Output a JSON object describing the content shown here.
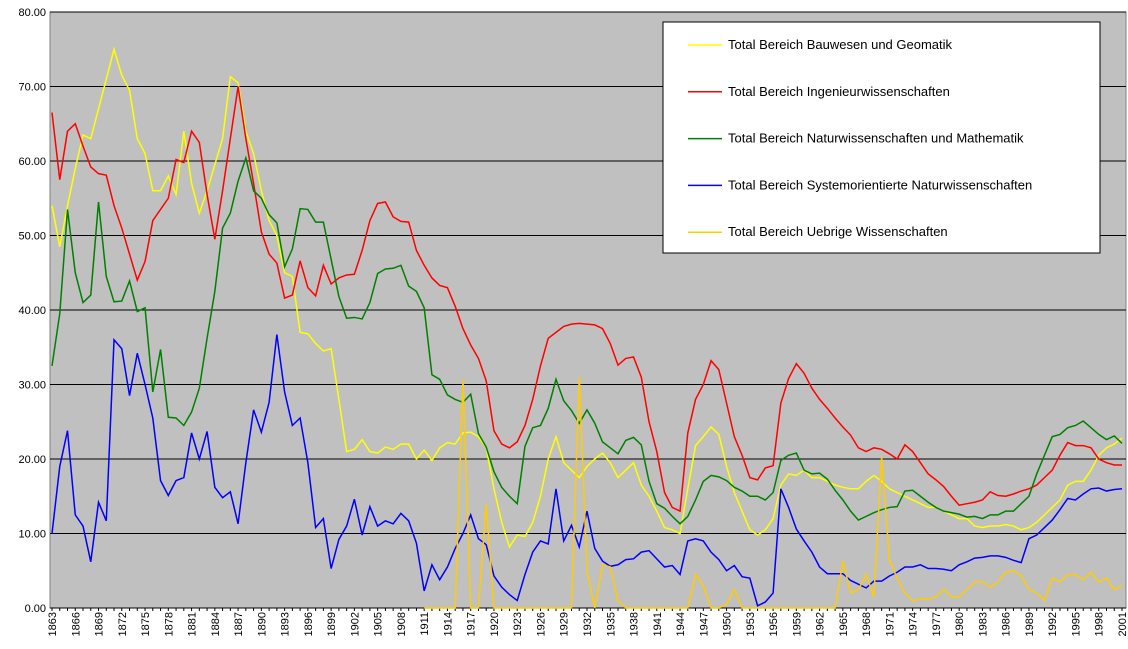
{
  "chart_data": {
    "type": "line",
    "categories": [
      "1863",
      null,
      null,
      "1866",
      null,
      null,
      "1869",
      null,
      null,
      "1872",
      null,
      null,
      "1875",
      null,
      null,
      "1878",
      null,
      null,
      "1881",
      null,
      null,
      "1884",
      null,
      null,
      "1887",
      null,
      null,
      "1890",
      null,
      null,
      "1893",
      null,
      null,
      "1896",
      null,
      null,
      "1899",
      null,
      null,
      "1902",
      null,
      null,
      "1905",
      null,
      null,
      "1908",
      null,
      null,
      "1911",
      null,
      null,
      "1914",
      null,
      null,
      "1917",
      null,
      null,
      "1920",
      null,
      null,
      "1923",
      null,
      null,
      "1926",
      null,
      null,
      "1929",
      null,
      null,
      "1932",
      null,
      null,
      "1935",
      null,
      null,
      "1938",
      null,
      null,
      "1941",
      null,
      null,
      "1944",
      null,
      null,
      "1947",
      null,
      null,
      "1950",
      null,
      null,
      "1953",
      null,
      null,
      "1956",
      null,
      null,
      "1959",
      null,
      null,
      "1962",
      null,
      null,
      "1965",
      null,
      null,
      "1968",
      null,
      null,
      "1971",
      null,
      null,
      "1974",
      null,
      null,
      "1977",
      null,
      null,
      "1980",
      null,
      null,
      "1983",
      null,
      null,
      "1986",
      null,
      null,
      "1989",
      null,
      null,
      "1992",
      null,
      null,
      "1995",
      null,
      null,
      "1998",
      null,
      null,
      "2001"
    ],
    "series": [
      {
        "name": "Total Bereich Bauwesen und Geomatik",
        "color": "#ffff00",
        "values": [
          54,
          48.5,
          54,
          59,
          63.5,
          63,
          67,
          71,
          75,
          71.5,
          69.5,
          63,
          61,
          56,
          56,
          58,
          55.5,
          64,
          57,
          53,
          56,
          59.5,
          63,
          71.3,
          70.5,
          64,
          61,
          56,
          52,
          50,
          45,
          44.5,
          37,
          36.8,
          35.5,
          34.5,
          34.8,
          28,
          21,
          21.3,
          22.6,
          21,
          20.8,
          21.6,
          21.3,
          22,
          22,
          20,
          21.2,
          19.8,
          21.5,
          22.2,
          22,
          23.5,
          23.6,
          23,
          21.5,
          16,
          11.5,
          8.2,
          9.8,
          9.6,
          11.5,
          15,
          20,
          23,
          19.5,
          18.5,
          17.5,
          19,
          20,
          20.8,
          19.5,
          17.5,
          18.5,
          19.5,
          16.5,
          15,
          13,
          10.8,
          10.5,
          10,
          16,
          21.8,
          23,
          24.3,
          23.3,
          19,
          15.5,
          13,
          10.5,
          9.8,
          10.5,
          12,
          16.5,
          18,
          17.8,
          18.5,
          17.5,
          17.5,
          17,
          16.5,
          16.2,
          16,
          16,
          17,
          17.8,
          17,
          16,
          15.5,
          15,
          14.5,
          14,
          13.5,
          13.5,
          13,
          12.5,
          12,
          12,
          11,
          10.8,
          11,
          11,
          11.2,
          11,
          10.5,
          10.8,
          11.5,
          12.5,
          13.5,
          14.5,
          16.5,
          17,
          17,
          18.5,
          20.5,
          21.5,
          22,
          22.8
        ]
      },
      {
        "name": "Total Bereich Ingenieurwissenschaften",
        "color": "#ff0000",
        "values": [
          66.5,
          57.5,
          64,
          65,
          62,
          59.2,
          58.3,
          58.1,
          54,
          51,
          47.5,
          44,
          46.5,
          52,
          53.5,
          55,
          60.2,
          59.8,
          64,
          62.5,
          55.5,
          49.5,
          56,
          63,
          70,
          63,
          57,
          50.5,
          47.5,
          46.3,
          41.6,
          42,
          46.6,
          43,
          41.9,
          46,
          43.5,
          44.3,
          44.7,
          44.8,
          48,
          52,
          54.3,
          54.5,
          52.5,
          51.9,
          51.8,
          48,
          46,
          44.3,
          43.3,
          43,
          40.5,
          37.5,
          35.3,
          33.5,
          30.5,
          23.8,
          22,
          21.5,
          22.3,
          24.5,
          28,
          32.5,
          36.2,
          37,
          37.8,
          38.1,
          38.2,
          38.1,
          38,
          37.5,
          35.5,
          32.6,
          33.5,
          33.7,
          31,
          25,
          21,
          15.5,
          13.5,
          13,
          23.5,
          28,
          30,
          33.2,
          32,
          27.5,
          23,
          20.5,
          17.5,
          17.2,
          18.8,
          19.1,
          27.5,
          30.8,
          32.8,
          31.5,
          29.5,
          28,
          26.8,
          25.5,
          24.3,
          23.2,
          21.5,
          21,
          21.5,
          21.3,
          20.7,
          20,
          21.9,
          21,
          19.5,
          18,
          17.2,
          16.3,
          15,
          13.8,
          14,
          14.2,
          14.5,
          15.6,
          15.1,
          15,
          15.3,
          15.7,
          16,
          16.5,
          17.5,
          18.5,
          20.5,
          22.2,
          21.8,
          21.8,
          21.5,
          20,
          19.5,
          19.2,
          19.2
        ]
      },
      {
        "name": "Total Bereich Naturwissenschaften und Mathematik",
        "color": "#008000",
        "values": [
          32.5,
          39.5,
          53.5,
          45,
          41,
          42,
          54.5,
          44.5,
          41.1,
          41.2,
          43.9,
          39.8,
          40.3,
          29,
          34.7,
          25.6,
          25.5,
          24.5,
          26.3,
          29.5,
          36.2,
          42.5,
          51,
          53,
          57.3,
          60.4,
          56,
          55,
          52.8,
          51.7,
          45.8,
          48.2,
          53.6,
          53.5,
          51.8,
          51.8,
          46.8,
          41.8,
          38.9,
          39,
          38.8,
          41,
          44.9,
          45.5,
          45.6,
          46,
          43.2,
          42.5,
          40.3,
          31.3,
          30.7,
          28.6,
          28,
          27.6,
          28.7,
          23.4,
          21.6,
          18.3,
          16.2,
          15,
          14,
          21.7,
          24.2,
          24.5,
          26.8,
          30.7,
          27.8,
          26.5,
          24.8,
          26.6,
          24.8,
          22.3,
          21.5,
          20.7,
          22.5,
          22.9,
          21.9,
          17,
          14,
          13.4,
          12.3,
          11.3,
          12.3,
          14.5,
          17,
          17.8,
          17.6,
          17.1,
          16.2,
          15.7,
          15,
          15,
          14.5,
          15.5,
          19.8,
          20.5,
          20.8,
          18.5,
          18,
          18.1,
          17.3,
          15.8,
          14.5,
          13,
          11.8,
          12.3,
          12.8,
          13.2,
          13.5,
          13.6,
          15.7,
          15.8,
          15,
          14.2,
          13.5,
          13,
          12.8,
          12.6,
          12.2,
          12.3,
          12,
          12.5,
          12.5,
          13,
          13,
          14,
          15,
          18,
          20.5,
          23,
          23.3,
          24.2,
          24.5,
          25.1,
          24.2,
          23.3,
          22.6,
          23.1,
          22.1
        ]
      },
      {
        "name": "Total Bereich Systemorientierte Naturwissenschaften",
        "color": "#0000ff",
        "values": [
          10,
          19,
          23.8,
          12.5,
          11,
          6.2,
          14.2,
          11.7,
          36,
          34.8,
          28.5,
          34.2,
          30,
          25.5,
          17.1,
          15.1,
          17.1,
          17.5,
          23.5,
          20,
          23.7,
          16.2,
          14.8,
          15.6,
          11.3,
          19.5,
          26.6,
          23.6,
          27.6,
          36.7,
          29,
          24.5,
          25.5,
          19.5,
          10.8,
          12,
          5.3,
          9.2,
          11,
          14.6,
          9.8,
          13.6,
          11,
          11.7,
          11.3,
          12.7,
          11.7,
          8.7,
          2.3,
          5.8,
          3.8,
          5.5,
          8,
          10,
          12.5,
          9.3,
          8.5,
          4.3,
          2.8,
          1.8,
          1,
          4.5,
          7.5,
          9,
          8.6,
          16,
          9,
          11.1,
          8.2,
          13,
          8,
          6.3,
          5.6,
          5.8,
          6.5,
          6.6,
          7.5,
          7.7,
          6.6,
          5.5,
          5.7,
          4.5,
          9,
          9.3,
          9,
          7.5,
          6.5,
          5,
          5.7,
          4.2,
          4,
          0.3,
          0.8,
          2,
          16,
          13.5,
          10.6,
          9,
          7.5,
          5.5,
          4.6,
          4.6,
          4.6,
          3.7,
          3.2,
          2.7,
          3.6,
          3.6,
          4.3,
          4.8,
          5.5,
          5.5,
          5.8,
          5.3,
          5.3,
          5.2,
          5,
          5.8,
          6.2,
          6.7,
          6.8,
          7,
          7,
          6.8,
          6.4,
          6.1,
          9.3,
          9.8,
          10.8,
          11.8,
          13.2,
          14.7,
          14.5,
          15.3,
          16,
          16.1,
          15.7,
          15.9,
          16
        ]
      },
      {
        "name": "Total Bereich Uebrige Wissenschaften",
        "color": "#ffcc00",
        "values": [
          null,
          null,
          null,
          null,
          null,
          null,
          null,
          null,
          null,
          null,
          null,
          null,
          null,
          null,
          null,
          null,
          null,
          null,
          null,
          null,
          null,
          null,
          null,
          null,
          null,
          null,
          null,
          null,
          null,
          null,
          null,
          null,
          null,
          null,
          null,
          null,
          null,
          null,
          null,
          null,
          null,
          null,
          null,
          null,
          null,
          null,
          null,
          null,
          0,
          0,
          0,
          0,
          0,
          30.7,
          0,
          0,
          14,
          0,
          0,
          0,
          0,
          0,
          0,
          0,
          0,
          0,
          0,
          0,
          31,
          5,
          0,
          5.8,
          5.5,
          1,
          0,
          0,
          0,
          0,
          0,
          0,
          0,
          0,
          0,
          4.5,
          3,
          0,
          0,
          0.5,
          2.5,
          0,
          0,
          0,
          0,
          0,
          0,
          0,
          0,
          0,
          0,
          0,
          0,
          0,
          6.3,
          2,
          2.5,
          4.5,
          1.5,
          20.3,
          6.5,
          4,
          2,
          1,
          1.2,
          1.2,
          1.5,
          2.5,
          1.5,
          1.5,
          2.5,
          3.5,
          3.5,
          2.8,
          3.5,
          4.8,
          5,
          4.3,
          2.5,
          2,
          1,
          4,
          3.5,
          4.5,
          4.5,
          3.8,
          4.8,
          3.5,
          4,
          2.5,
          3
        ]
      }
    ],
    "ylim": [
      0,
      80
    ],
    "yticks": [
      {
        "value": 0,
        "label": "0.00"
      },
      {
        "value": 10,
        "label": "10.00"
      },
      {
        "value": 20,
        "label": "20.00"
      },
      {
        "value": 30,
        "label": "30.00"
      },
      {
        "value": 40,
        "label": "40.00"
      },
      {
        "value": 50,
        "label": "50.00"
      },
      {
        "value": 60,
        "label": "60.00"
      },
      {
        "value": 70,
        "label": "70.00"
      },
      {
        "value": 80,
        "label": "80.00"
      }
    ],
    "grid": true,
    "legend": "top-right"
  }
}
